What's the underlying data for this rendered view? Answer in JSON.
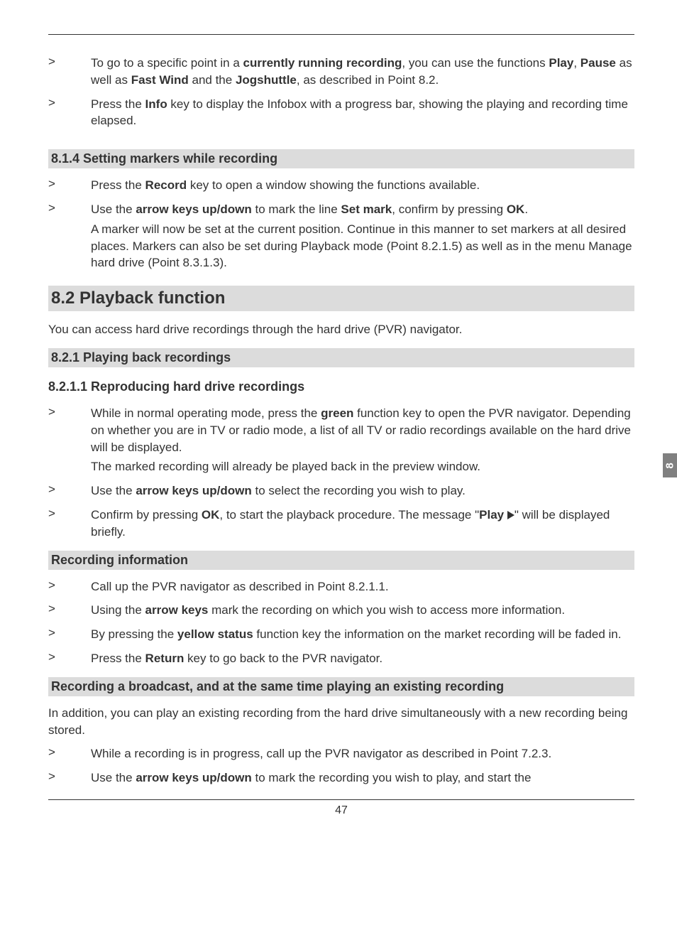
{
  "sideTab": "8",
  "pageNumber": "47",
  "intro": [
    {
      "marker": ">",
      "runs": [
        {
          "t": "To go to a specific point in a ",
          "b": false
        },
        {
          "t": "currently running recording",
          "b": true
        },
        {
          "t": ", you can use the functions ",
          "b": false
        },
        {
          "t": "Play",
          "b": true
        },
        {
          "t": ", ",
          "b": false
        },
        {
          "t": "Pause",
          "b": true
        },
        {
          "t": " as well as ",
          "b": false
        },
        {
          "t": "Fast Wind",
          "b": true
        },
        {
          "t": " and the ",
          "b": false
        },
        {
          "t": "Jogshuttle",
          "b": true
        },
        {
          "t": ", as described in Point 8.2.",
          "b": false
        }
      ]
    },
    {
      "marker": ">",
      "runs": [
        {
          "t": "Press the ",
          "b": false
        },
        {
          "t": "Info",
          "b": true
        },
        {
          "t": " key to display the Infobox with a progress bar, showing the playing and recording time elapsed.",
          "b": false
        }
      ]
    }
  ],
  "h814": "8.1.4 Setting markers while recording",
  "sec814": [
    {
      "marker": ">",
      "runs": [
        {
          "t": "Press the ",
          "b": false
        },
        {
          "t": "Record",
          "b": true
        },
        {
          "t": " key to open a window showing the functions available.",
          "b": false
        }
      ]
    },
    {
      "marker": ">",
      "runs": [
        {
          "t": "Use the ",
          "b": false
        },
        {
          "t": "arrow keys up/down",
          "b": true
        },
        {
          "t": " to mark the line ",
          "b": false
        },
        {
          "t": "Set mark",
          "b": true
        },
        {
          "t": ", confirm by pressing ",
          "b": false
        },
        {
          "t": "OK",
          "b": true
        },
        {
          "t": ".",
          "b": false
        }
      ],
      "tail": "A marker will now be set at the current position. Continue in this manner to set markers at all desired places. Markers can also be set during Playback mode (Point 8.2.1.5) as well as in the menu Manage hard drive (Point 8.3.1.3)."
    }
  ],
  "h82": "8.2 Playback function",
  "p82": "You can access hard drive recordings through the hard drive (PVR) navigator.",
  "h821": "8.2.1 Playing back recordings",
  "h8211": "8.2.1.1 Reproducing hard drive recordings",
  "sec8211": [
    {
      "marker": ">",
      "runs": [
        {
          "t": "While in normal operating mode, press the ",
          "b": false
        },
        {
          "t": "green",
          "b": true
        },
        {
          "t": " function key to open the PVR navigator. Depending on whether you are in TV or radio mode, a list of all TV or radio recordings available on the hard drive will be displayed.",
          "b": false
        }
      ],
      "tail": "The marked recording will already be played back in the preview window."
    },
    {
      "marker": ">",
      "runs": [
        {
          "t": "Use the ",
          "b": false
        },
        {
          "t": "arrow keys up/down",
          "b": true
        },
        {
          "t": " to select the recording you wish to play.",
          "b": false
        }
      ]
    },
    {
      "marker": ">",
      "runs": [
        {
          "t": "Confirm by pressing ",
          "b": false
        },
        {
          "t": "OK",
          "b": true
        },
        {
          "t": ", to start the playback procedure. The message \"",
          "b": false
        },
        {
          "t": "Play ",
          "b": true
        },
        {
          "t": "▶",
          "b": true,
          "triangle": true
        },
        {
          "t": "\" will be displayed briefly.",
          "b": false
        }
      ]
    }
  ],
  "hRecInfo": "Recording information",
  "secRecInfo": [
    {
      "marker": ">",
      "runs": [
        {
          "t": "Call up the PVR navigator as described in Point 8.2.1.1.",
          "b": false
        }
      ]
    },
    {
      "marker": ">",
      "runs": [
        {
          "t": "Using the ",
          "b": false
        },
        {
          "t": "arrow keys",
          "b": true
        },
        {
          "t": " mark the recording on which you wish to access more information.",
          "b": false
        }
      ]
    },
    {
      "marker": ">",
      "runs": [
        {
          "t": "By pressing the ",
          "b": false
        },
        {
          "t": "yellow status",
          "b": true
        },
        {
          "t": " function key the information on the market recording will be faded in.",
          "b": false
        }
      ]
    },
    {
      "marker": ">",
      "runs": [
        {
          "t": "Press the ",
          "b": false
        },
        {
          "t": "Return",
          "b": true
        },
        {
          "t": " key to go back to the PVR navigator.",
          "b": false
        }
      ]
    }
  ],
  "hRecBcast": "Recording a broadcast, and at the same time playing an existing recording",
  "pRecBcast": "In addition, you can play an existing recording from the hard drive simultaneously with a new recording being stored.",
  "secRecBcast": [
    {
      "marker": ">",
      "runs": [
        {
          "t": "While a recording is in progress, call up the PVR navigator as described in Point 7.2.3.",
          "b": false
        }
      ]
    },
    {
      "marker": ">",
      "runs": [
        {
          "t": "Use the ",
          "b": false
        },
        {
          "t": "arrow keys up/down",
          "b": true
        },
        {
          "t": " to mark the recording you wish to play, and start the",
          "b": false
        }
      ]
    }
  ]
}
